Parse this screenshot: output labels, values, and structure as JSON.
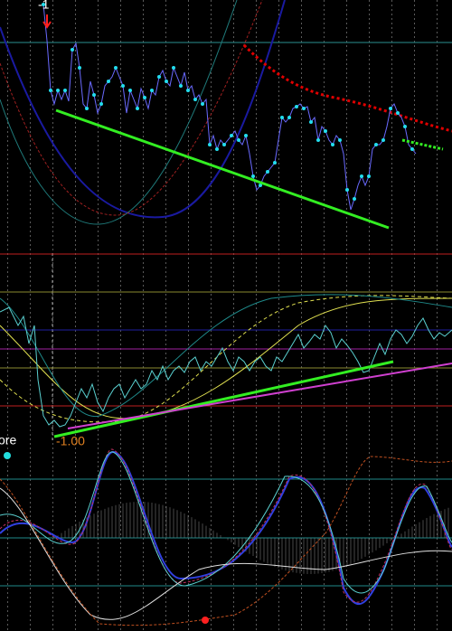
{
  "labels": {
    "top_marker": "-1",
    "level": "-1.00",
    "indicator": "ore"
  }
}
